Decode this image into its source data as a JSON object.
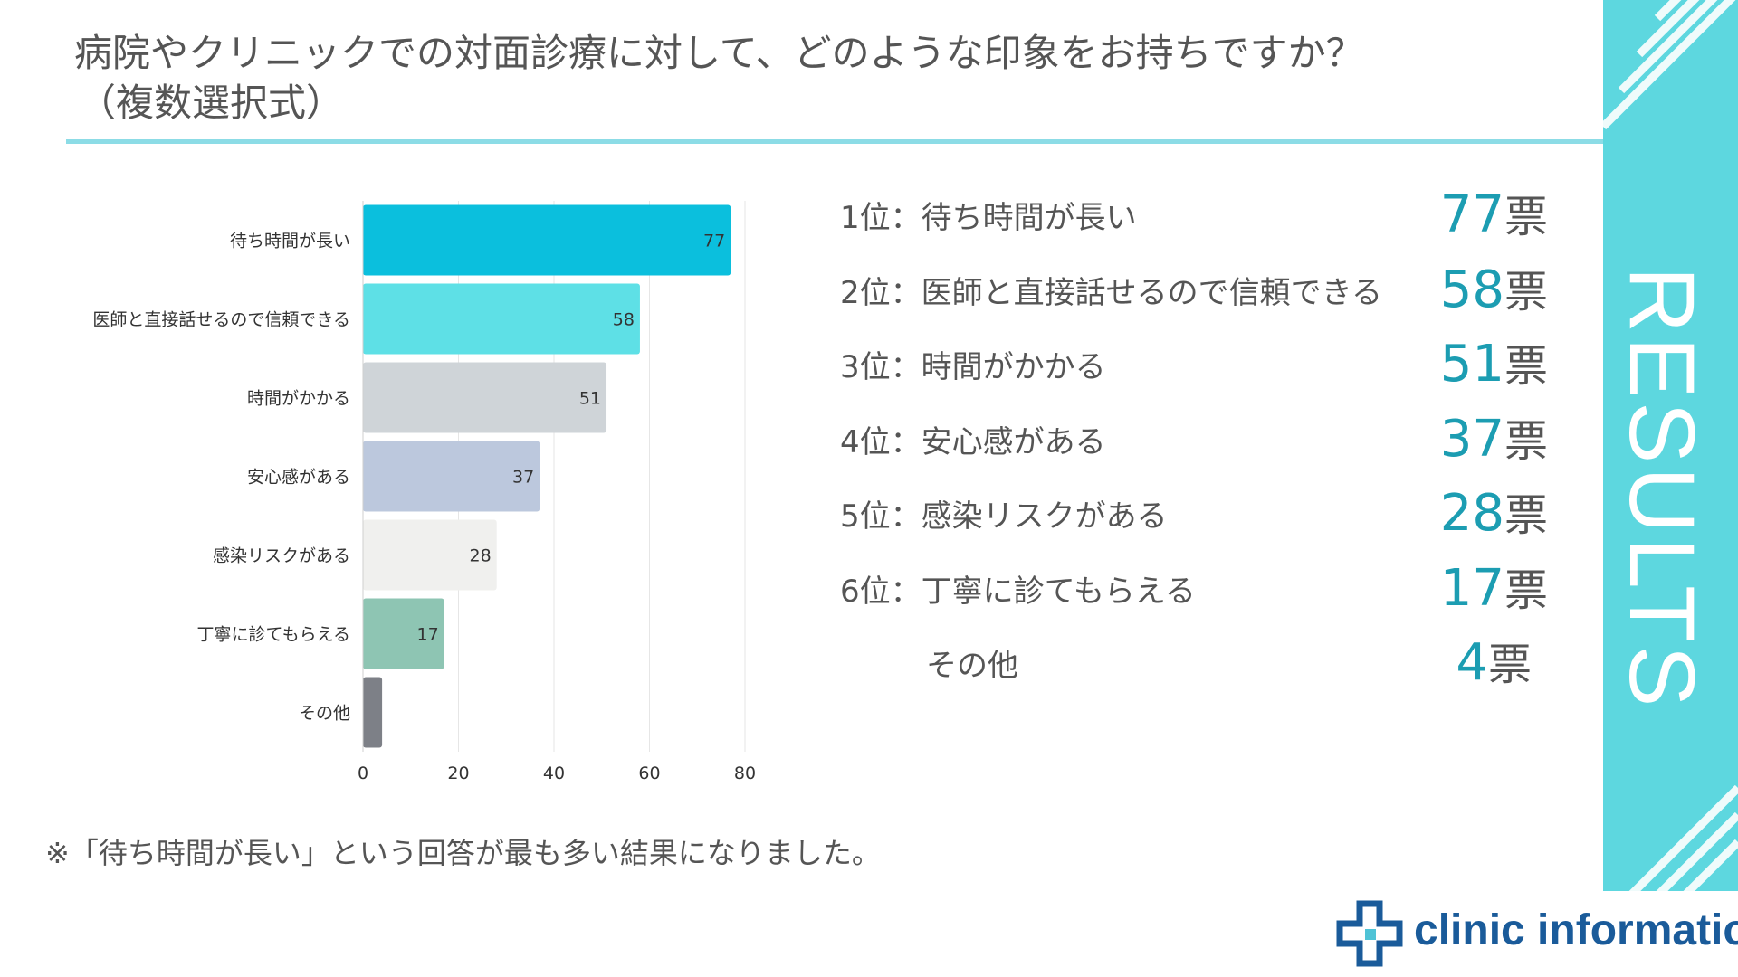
{
  "header": {
    "title_line1": "病院やクリニックでの対面診療に対して、どのような印象をお持ちですか？",
    "title_line2": "（複数選択式）"
  },
  "side_label": "RESULTS",
  "chart_data": {
    "type": "bar",
    "orientation": "horizontal",
    "categories": [
      "待ち時間が長い",
      "医師と直接話せるので信頼できる",
      "時間がかかる",
      "安心感がある",
      "感染リスクがある",
      "丁寧に診てもらえる",
      "その他"
    ],
    "values": [
      77,
      58,
      51,
      37,
      28,
      17,
      4
    ],
    "data_labels": [
      "77",
      "58",
      "51",
      "37",
      "28",
      "17",
      ""
    ],
    "bar_colors": [
      "#0bbfdd",
      "#5ee0e6",
      "#cfd4d8",
      "#bcc8dd",
      "#f0f0ee",
      "#8ec5b3",
      "#7d8087"
    ],
    "xlim": [
      0,
      80
    ],
    "xticks": [
      "0",
      "20",
      "40",
      "60",
      "80"
    ],
    "grid": true,
    "title": "",
    "xlabel": "",
    "ylabel": ""
  },
  "ranking": [
    {
      "label": "1位：待ち時間が長い",
      "number": "77",
      "unit": "票"
    },
    {
      "label": "2位：医師と直接話せるので信頼できる",
      "number": "58",
      "unit": "票"
    },
    {
      "label": "3位：時間がかかる",
      "number": "51",
      "unit": "票"
    },
    {
      "label": "4位：安心感がある",
      "number": "37",
      "unit": "票"
    },
    {
      "label": "5位：感染リスクがある",
      "number": "28",
      "unit": "票"
    },
    {
      "label": "6位：丁寧に診てもらえる",
      "number": "17",
      "unit": "票"
    },
    {
      "label": "その他",
      "number": "4",
      "unit": "票"
    }
  ],
  "note": "※「待ち時間が長い」という回答が最も多い結果になりました。",
  "logo": {
    "text": "clinic information",
    "icon": "medical-cross-icon"
  },
  "colors": {
    "accent": "#5dd7df",
    "rule": "#8cdce6",
    "vote_number": "#1c9db2",
    "logo": "#1a5b9a"
  }
}
